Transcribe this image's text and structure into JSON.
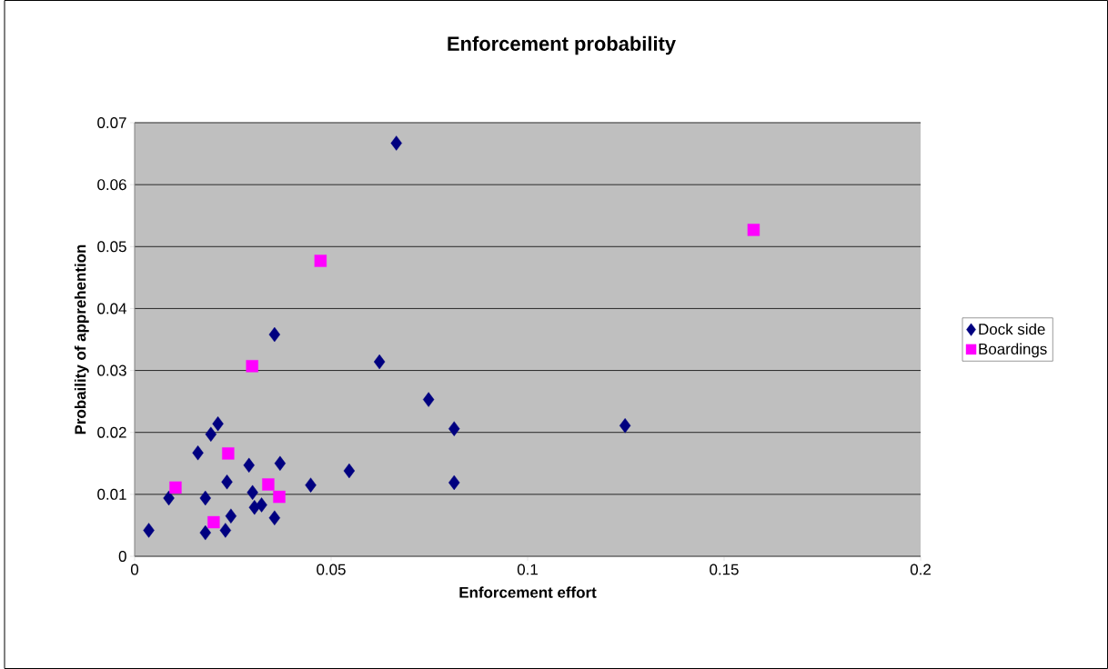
{
  "chart_data": {
    "type": "scatter",
    "title": "Enforcement probability",
    "xlabel": "Enforcement effort",
    "ylabel": "Probaility of apprehention",
    "xlim": [
      0,
      0.2
    ],
    "xticks": [
      0,
      0.05,
      0.1,
      0.15,
      0.2
    ],
    "ylim": [
      0,
      0.07
    ],
    "yticks": [
      0,
      0.01,
      0.02,
      0.03,
      0.04,
      0.05,
      0.06,
      0.07
    ],
    "grid": "y",
    "legend": "right",
    "series": [
      {
        "name": "Dock side",
        "color": "#000080",
        "marker": "diamond",
        "x": [
          0.0212,
          0.0194,
          0.0161,
          0.0291,
          0.037,
          0.0546,
          0.0235,
          0.0448,
          0.0087,
          0.018,
          0.03,
          0.0305,
          0.0323,
          0.0356,
          0.0245,
          0.0036,
          0.018,
          0.0231,
          0.0666,
          0.0356,
          0.0623,
          0.0748,
          0.0813,
          0.0813,
          0.1248
        ],
        "values": [
          0.0214,
          0.0197,
          0.0167,
          0.0147,
          0.015,
          0.0138,
          0.012,
          0.0115,
          0.0094,
          0.0094,
          0.0103,
          0.0079,
          0.0083,
          0.0062,
          0.0065,
          0.0042,
          0.0038,
          0.0042,
          0.0667,
          0.0358,
          0.0314,
          0.0253,
          0.0206,
          0.0119,
          0.0211
        ]
      },
      {
        "name": "Boardings",
        "color": "#ff00ff",
        "marker": "square",
        "x": [
          0.0299,
          0.0238,
          0.0104,
          0.034,
          0.0368,
          0.0201,
          0.1575,
          0.0473
        ],
        "values": [
          0.0307,
          0.0166,
          0.0111,
          0.0116,
          0.0096,
          0.0055,
          0.0527,
          0.0477
        ]
      }
    ]
  }
}
